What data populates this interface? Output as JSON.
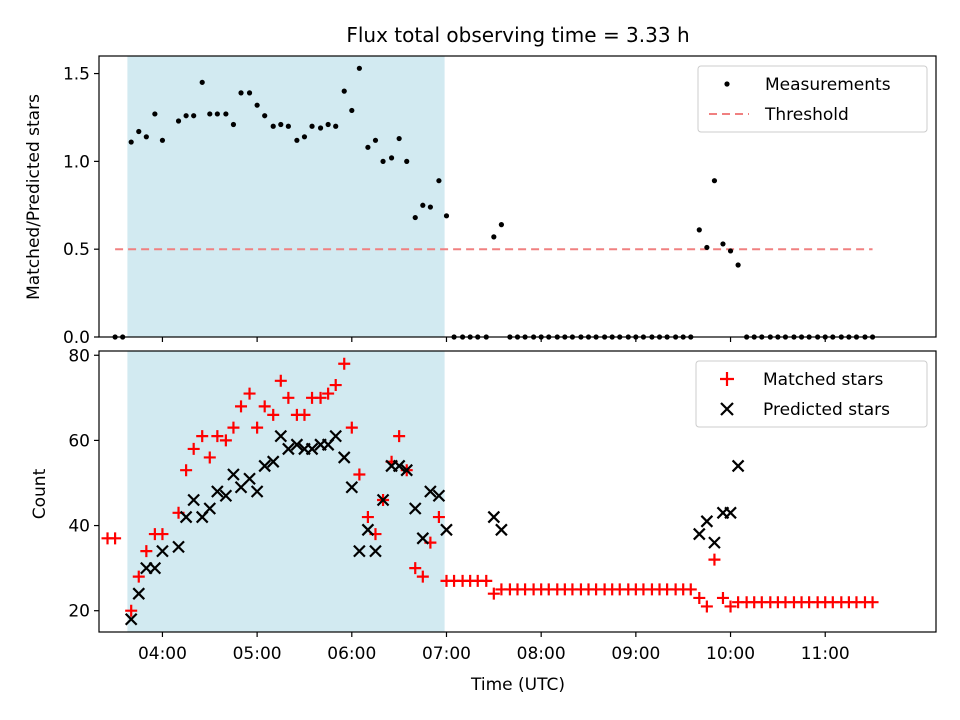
{
  "chart_data": [
    {
      "type": "scatter",
      "title": "Flux total observing time = 3.33 h",
      "xlabel": "",
      "ylabel": "Matched/Predicted stars",
      "xlim": [
        3.33,
        12.17
      ],
      "ylim": [
        0,
        1.6
      ],
      "yticks": [
        0,
        0.5,
        1.0,
        1.5
      ],
      "ytick_labels": [
        "0.0",
        "0.5",
        "1.0",
        "1.5"
      ],
      "shaded_region": {
        "x_start": 3.63,
        "x_end": 6.98,
        "color": "#add8e6"
      },
      "threshold": {
        "name": "Threshold",
        "value": 0.5,
        "x_start": 3.5,
        "x_end": 11.5,
        "color": "#f08080"
      },
      "legend": {
        "position": "top-right",
        "entries": [
          "Measurements",
          "Threshold"
        ]
      },
      "series": [
        {
          "name": "Measurements",
          "marker": "dot",
          "color": "#000000",
          "points": [
            [
              3.5,
              0
            ],
            [
              3.58,
              0
            ],
            [
              3.67,
              1.11
            ],
            [
              3.75,
              1.17
            ],
            [
              3.83,
              1.14
            ],
            [
              3.92,
              1.27
            ],
            [
              4.0,
              1.12
            ],
            [
              4.17,
              1.23
            ],
            [
              4.25,
              1.26
            ],
            [
              4.33,
              1.26
            ],
            [
              4.42,
              1.45
            ],
            [
              4.5,
              1.27
            ],
            [
              4.58,
              1.27
            ],
            [
              4.67,
              1.27
            ],
            [
              4.75,
              1.21
            ],
            [
              4.83,
              1.39
            ],
            [
              4.92,
              1.39
            ],
            [
              5.0,
              1.32
            ],
            [
              5.08,
              1.26
            ],
            [
              5.17,
              1.2
            ],
            [
              5.25,
              1.21
            ],
            [
              5.33,
              1.2
            ],
            [
              5.42,
              1.12
            ],
            [
              5.5,
              1.14
            ],
            [
              5.58,
              1.2
            ],
            [
              5.67,
              1.19
            ],
            [
              5.75,
              1.21
            ],
            [
              5.83,
              1.2
            ],
            [
              5.92,
              1.4
            ],
            [
              6.0,
              1.29
            ],
            [
              6.08,
              1.53
            ],
            [
              6.17,
              1.08
            ],
            [
              6.25,
              1.12
            ],
            [
              6.33,
              1.0
            ],
            [
              6.42,
              1.02
            ],
            [
              6.5,
              1.13
            ],
            [
              6.58,
              1.0
            ],
            [
              6.67,
              0.68
            ],
            [
              6.75,
              0.75
            ],
            [
              6.83,
              0.74
            ],
            [
              6.92,
              0.89
            ],
            [
              7.0,
              0.69
            ],
            [
              7.08,
              0
            ],
            [
              7.17,
              0
            ],
            [
              7.25,
              0
            ],
            [
              7.33,
              0
            ],
            [
              7.42,
              0
            ],
            [
              7.5,
              0.57
            ],
            [
              7.58,
              0.64
            ],
            [
              7.67,
              0
            ],
            [
              7.75,
              0
            ],
            [
              7.83,
              0
            ],
            [
              7.92,
              0
            ],
            [
              8.0,
              0
            ],
            [
              8.08,
              0
            ],
            [
              8.17,
              0
            ],
            [
              8.25,
              0
            ],
            [
              8.33,
              0
            ],
            [
              8.42,
              0
            ],
            [
              8.5,
              0
            ],
            [
              8.58,
              0
            ],
            [
              8.67,
              0
            ],
            [
              8.75,
              0
            ],
            [
              8.83,
              0
            ],
            [
              8.92,
              0
            ],
            [
              9.0,
              0
            ],
            [
              9.08,
              0
            ],
            [
              9.17,
              0
            ],
            [
              9.25,
              0
            ],
            [
              9.33,
              0
            ],
            [
              9.42,
              0
            ],
            [
              9.5,
              0
            ],
            [
              9.58,
              0
            ],
            [
              9.67,
              0.61
            ],
            [
              9.75,
              0.51
            ],
            [
              9.83,
              0.89
            ],
            [
              9.92,
              0.53
            ],
            [
              10.0,
              0.49
            ],
            [
              10.08,
              0.41
            ],
            [
              10.17,
              0
            ],
            [
              10.25,
              0
            ],
            [
              10.33,
              0
            ],
            [
              10.42,
              0
            ],
            [
              10.5,
              0
            ],
            [
              10.58,
              0
            ],
            [
              10.67,
              0
            ],
            [
              10.75,
              0
            ],
            [
              10.83,
              0
            ],
            [
              10.92,
              0
            ],
            [
              11.0,
              0
            ],
            [
              11.08,
              0
            ],
            [
              11.17,
              0
            ],
            [
              11.25,
              0
            ],
            [
              11.33,
              0
            ],
            [
              11.42,
              0
            ],
            [
              11.5,
              0
            ]
          ]
        }
      ]
    },
    {
      "type": "scatter",
      "title": "",
      "xlabel": "Time (UTC)",
      "ylabel": "Count",
      "xlim": [
        3.33,
        12.17
      ],
      "ylim": [
        15,
        81
      ],
      "yticks": [
        20,
        40,
        60,
        80
      ],
      "ytick_labels": [
        "20",
        "40",
        "60",
        "80"
      ],
      "xticks": [
        4,
        5,
        6,
        7,
        8,
        9,
        10,
        11
      ],
      "xtick_labels": [
        "04:00",
        "05:00",
        "06:00",
        "07:00",
        "08:00",
        "09:00",
        "10:00",
        "11:00"
      ],
      "shaded_region": {
        "x_start": 3.63,
        "x_end": 6.98,
        "color": "#add8e6"
      },
      "legend": {
        "position": "top-right",
        "entries": [
          "Matched stars",
          "Predicted stars"
        ]
      },
      "series": [
        {
          "name": "Matched stars",
          "marker": "plus",
          "color": "#ff0000",
          "points": [
            [
              3.42,
              37
            ],
            [
              3.5,
              37
            ],
            [
              3.67,
              20
            ],
            [
              3.75,
              28
            ],
            [
              3.83,
              34
            ],
            [
              3.92,
              38
            ],
            [
              4.0,
              38
            ],
            [
              4.17,
              43
            ],
            [
              4.25,
              53
            ],
            [
              4.33,
              58
            ],
            [
              4.42,
              61
            ],
            [
              4.5,
              56
            ],
            [
              4.58,
              61
            ],
            [
              4.67,
              60
            ],
            [
              4.75,
              63
            ],
            [
              4.83,
              68
            ],
            [
              4.92,
              71
            ],
            [
              5.0,
              63
            ],
            [
              5.08,
              68
            ],
            [
              5.17,
              66
            ],
            [
              5.25,
              74
            ],
            [
              5.33,
              70
            ],
            [
              5.42,
              66
            ],
            [
              5.5,
              66
            ],
            [
              5.58,
              70
            ],
            [
              5.67,
              70
            ],
            [
              5.75,
              71
            ],
            [
              5.83,
              73
            ],
            [
              5.92,
              78
            ],
            [
              6.0,
              63
            ],
            [
              6.08,
              52
            ],
            [
              6.17,
              42
            ],
            [
              6.25,
              38
            ],
            [
              6.33,
              46
            ],
            [
              6.42,
              55
            ],
            [
              6.5,
              61
            ],
            [
              6.58,
              53
            ],
            [
              6.67,
              30
            ],
            [
              6.75,
              28
            ],
            [
              6.83,
              36
            ],
            [
              6.92,
              42
            ],
            [
              7.0,
              27
            ],
            [
              7.08,
              27
            ],
            [
              7.17,
              27
            ],
            [
              7.25,
              27
            ],
            [
              7.33,
              27
            ],
            [
              7.42,
              27
            ],
            [
              7.5,
              24
            ],
            [
              7.58,
              25
            ],
            [
              7.67,
              25
            ],
            [
              7.75,
              25
            ],
            [
              7.83,
              25
            ],
            [
              7.92,
              25
            ],
            [
              8.0,
              25
            ],
            [
              8.08,
              25
            ],
            [
              8.17,
              25
            ],
            [
              8.25,
              25
            ],
            [
              8.33,
              25
            ],
            [
              8.42,
              25
            ],
            [
              8.5,
              25
            ],
            [
              8.58,
              25
            ],
            [
              8.67,
              25
            ],
            [
              8.75,
              25
            ],
            [
              8.83,
              25
            ],
            [
              8.92,
              25
            ],
            [
              9.0,
              25
            ],
            [
              9.08,
              25
            ],
            [
              9.17,
              25
            ],
            [
              9.25,
              25
            ],
            [
              9.33,
              25
            ],
            [
              9.42,
              25
            ],
            [
              9.5,
              25
            ],
            [
              9.58,
              25
            ],
            [
              9.67,
              23
            ],
            [
              9.75,
              21
            ],
            [
              9.83,
              32
            ],
            [
              9.92,
              23
            ],
            [
              10.0,
              21
            ],
            [
              10.08,
              22
            ],
            [
              10.17,
              22
            ],
            [
              10.25,
              22
            ],
            [
              10.33,
              22
            ],
            [
              10.42,
              22
            ],
            [
              10.5,
              22
            ],
            [
              10.58,
              22
            ],
            [
              10.67,
              22
            ],
            [
              10.75,
              22
            ],
            [
              10.83,
              22
            ],
            [
              10.92,
              22
            ],
            [
              11.0,
              22
            ],
            [
              11.08,
              22
            ],
            [
              11.17,
              22
            ],
            [
              11.25,
              22
            ],
            [
              11.33,
              22
            ],
            [
              11.42,
              22
            ],
            [
              11.5,
              22
            ]
          ]
        },
        {
          "name": "Predicted stars",
          "marker": "x",
          "color": "#000000",
          "points": [
            [
              3.67,
              18
            ],
            [
              3.75,
              24
            ],
            [
              3.83,
              30
            ],
            [
              3.92,
              30
            ],
            [
              4.0,
              34
            ],
            [
              4.17,
              35
            ],
            [
              4.25,
              42
            ],
            [
              4.33,
              46
            ],
            [
              4.42,
              42
            ],
            [
              4.5,
              44
            ],
            [
              4.58,
              48
            ],
            [
              4.67,
              47
            ],
            [
              4.75,
              52
            ],
            [
              4.83,
              49
            ],
            [
              4.92,
              51
            ],
            [
              5.0,
              48
            ],
            [
              5.08,
              54
            ],
            [
              5.17,
              55
            ],
            [
              5.25,
              61
            ],
            [
              5.33,
              58
            ],
            [
              5.42,
              59
            ],
            [
              5.5,
              58
            ],
            [
              5.58,
              58
            ],
            [
              5.67,
              59
            ],
            [
              5.75,
              59
            ],
            [
              5.83,
              61
            ],
            [
              5.92,
              56
            ],
            [
              6.0,
              49
            ],
            [
              6.08,
              34
            ],
            [
              6.17,
              39
            ],
            [
              6.25,
              34
            ],
            [
              6.33,
              46
            ],
            [
              6.42,
              54
            ],
            [
              6.5,
              54
            ],
            [
              6.58,
              53
            ],
            [
              6.67,
              44
            ],
            [
              6.75,
              37
            ],
            [
              6.83,
              48
            ],
            [
              6.92,
              47
            ],
            [
              7.0,
              39
            ],
            [
              7.5,
              42
            ],
            [
              7.58,
              39
            ],
            [
              9.67,
              38
            ],
            [
              9.75,
              41
            ],
            [
              9.83,
              36
            ],
            [
              9.92,
              43
            ],
            [
              10.0,
              43
            ],
            [
              10.08,
              54
            ]
          ]
        }
      ]
    }
  ]
}
